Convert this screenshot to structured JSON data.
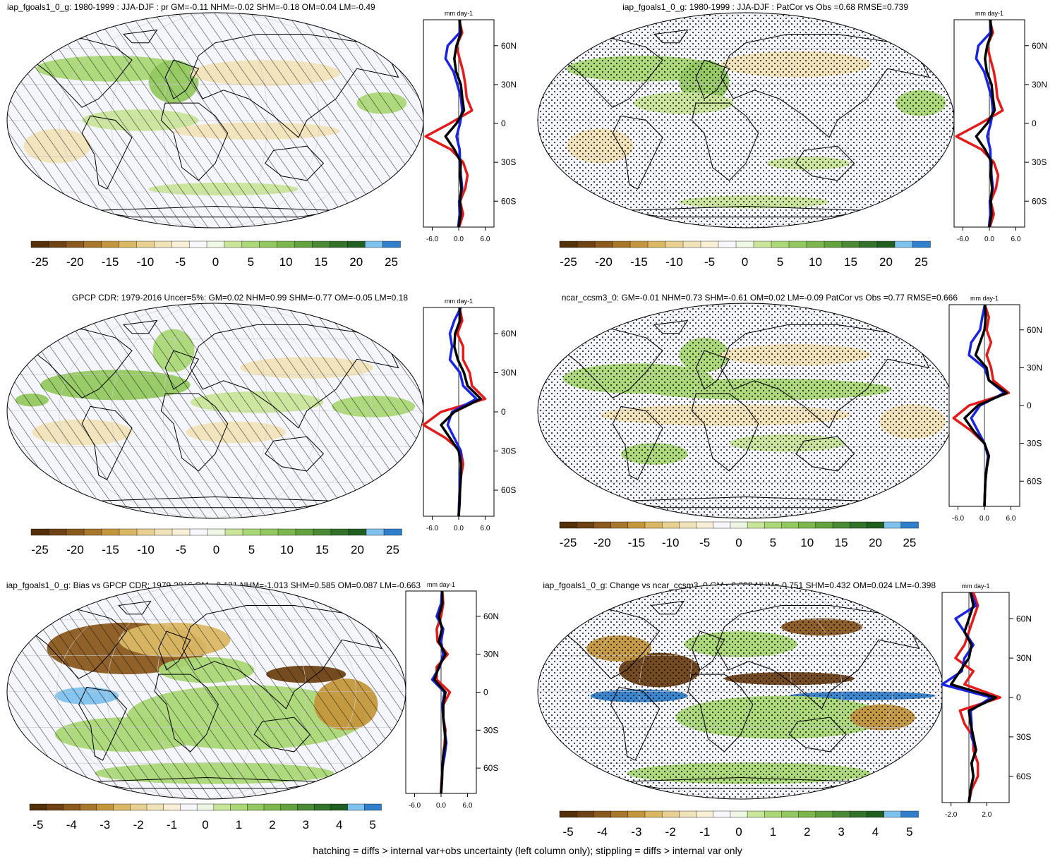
{
  "footer": "hatching = diffs > internal var+obs uncertainty (left column only); stippling = diffs > internal var only",
  "colors": {
    "brown_green_scale": [
      "#54300a",
      "#6e4214",
      "#8a5a1f",
      "#a7772c",
      "#c4973c",
      "#dab864",
      "#e7d092",
      "#f1e3b9",
      "#f8efd6",
      "#f7f7fb",
      "#eef6e4",
      "#c9e59a",
      "#aad876",
      "#93c860",
      "#7cb64c",
      "#63a23f",
      "#4b8a34",
      "#33722a",
      "#205f20",
      "#80c2ee",
      "#2f7fcc"
    ],
    "zonal_model": "#000000",
    "zonal_obs": "#1a24e6",
    "zonal_other": "#e61a1a"
  },
  "chart_data": [
    {
      "type": "heatmap",
      "title": "iap_fgoals1_0_g: 1980-1999 : JJA-DJF : pr GM=-0.11 NHM=-0.02 SHM=-0.18 OM=0.04 LM=-0.49",
      "overlay": "hatching",
      "colorbar_ticks": [
        "-25",
        "-20",
        "-15",
        "-10",
        "-5",
        "0",
        "5",
        "10",
        "15",
        "20",
        "25"
      ],
      "zonal_profile": {
        "units": "mm day-1",
        "xticks": [
          "-6.0",
          "0.0",
          "6.0"
        ],
        "yticks": [
          "60N",
          "30N",
          "0",
          "30S",
          "60S"
        ],
        "xlim": [
          -8,
          8
        ],
        "series_values": {
          "lat": [
            80,
            70,
            60,
            50,
            40,
            30,
            20,
            10,
            0,
            -10,
            -20,
            -30,
            -40,
            -50,
            -60,
            -70,
            -80
          ],
          "black": [
            0.2,
            0.5,
            -0.5,
            -1.0,
            -0.6,
            0.5,
            0.8,
            1.2,
            -0.5,
            -3.0,
            -1.0,
            0.5,
            0.3,
            0.6,
            0.3,
            0.5,
            0.0
          ],
          "blue": [
            0.3,
            0.2,
            -2.5,
            -3.0,
            -1.2,
            -0.3,
            0.5,
            0.8,
            0.3,
            -0.5,
            0.2,
            0.3,
            0.5,
            0.8,
            0.1,
            0.2,
            -0.1
          ],
          "red": [
            0.1,
            0.8,
            -0.5,
            0.2,
            1.0,
            1.5,
            1.8,
            3.0,
            -2.0,
            -7.5,
            -1.8,
            1.0,
            2.0,
            1.5,
            0.3,
            1.0,
            0.1
          ]
        }
      }
    },
    {
      "type": "heatmap",
      "title": "iap_fgoals1_0_g: 1980-1999 : JJA-DJF : PatCor vs Obs =0.68 RMSE=0.739",
      "overlay": "stippling",
      "colorbar_ticks": [
        "-25",
        "-20",
        "-15",
        "-10",
        "-5",
        "0",
        "5",
        "10",
        "15",
        "20",
        "25"
      ],
      "zonal_profile": {
        "units": "mm day-1",
        "xticks": [
          "-6.0",
          "0.0",
          "6.0"
        ],
        "yticks": [
          "60N",
          "30N",
          "0",
          "30S",
          "60S"
        ],
        "xlim": [
          -8,
          8
        ],
        "series_values": {
          "lat": [
            80,
            70,
            60,
            50,
            40,
            30,
            20,
            10,
            0,
            -10,
            -20,
            -30,
            -40,
            -50,
            -60,
            -70,
            -80
          ],
          "black": [
            0.2,
            0.5,
            -0.5,
            -1.0,
            -0.6,
            0.5,
            0.8,
            1.2,
            -0.5,
            -3.0,
            -1.0,
            0.5,
            0.3,
            0.6,
            0.3,
            0.5,
            0.0
          ],
          "blue": [
            0.3,
            0.2,
            -2.5,
            -3.0,
            -1.2,
            -0.3,
            0.5,
            0.8,
            0.3,
            -0.5,
            0.2,
            0.3,
            0.5,
            0.8,
            0.1,
            0.2,
            -0.1
          ],
          "red": [
            0.1,
            0.8,
            -0.5,
            0.2,
            1.0,
            1.5,
            1.8,
            3.0,
            -2.0,
            -7.5,
            -1.8,
            1.0,
            2.0,
            1.5,
            0.3,
            1.0,
            0.1
          ]
        }
      }
    },
    {
      "type": "heatmap",
      "title": "GPCP CDR: 1979-2016 Uncer=5%: GM=0.02 NHM=0.99 SHM=-0.77 OM=-0.05 LM=0.18",
      "overlay": "hatching",
      "colorbar_ticks": [
        "-25",
        "-20",
        "-15",
        "-10",
        "-5",
        "0",
        "5",
        "10",
        "15",
        "20",
        "25"
      ],
      "zonal_profile": {
        "units": "mm day-1",
        "xticks": [
          "-6.0",
          "0.0",
          "6.0"
        ],
        "yticks": [
          "60N",
          "30N",
          "0",
          "30S",
          "60S"
        ],
        "xlim": [
          -8,
          8
        ],
        "series_values": {
          "lat": [
            80,
            70,
            60,
            50,
            40,
            30,
            20,
            10,
            0,
            -10,
            -20,
            -30,
            -40,
            -50,
            -60,
            -70,
            -80
          ],
          "black": [
            0.2,
            0.3,
            -0.8,
            -1.0,
            -0.2,
            1.2,
            2.0,
            5.0,
            -1.0,
            -4.0,
            -2.0,
            0.0,
            0.5,
            0.5,
            0.3,
            0.2,
            0.0
          ],
          "blue": [
            0.5,
            -1.0,
            -2.0,
            -1.5,
            -2.0,
            0.3,
            1.0,
            4.0,
            -1.5,
            -2.5,
            -1.0,
            0.5,
            0.5,
            0.3,
            0.2,
            0.1,
            0.0
          ],
          "red": [
            0.2,
            0.8,
            -0.3,
            1.0,
            1.0,
            2.5,
            3.0,
            6.0,
            -4.0,
            -8.0,
            -3.0,
            0.5,
            1.0,
            0.5,
            0.2,
            0.1,
            0.0
          ]
        }
      }
    },
    {
      "type": "heatmap",
      "title": "ncar_ccsm3_0: GM=-0.01 NHM=0.73 SHM=-0.61 OM=0.02 LM=-0.09 PatCor vs Obs =0.77 RMSE=0.666",
      "overlay": "stippling",
      "colorbar_ticks": [
        "-25",
        "-20",
        "-15",
        "-10",
        "-5",
        "0",
        "5",
        "10",
        "15",
        "20",
        "25"
      ],
      "zonal_profile": {
        "units": "mm day-1",
        "xticks": [
          "-6.0",
          "0.0",
          "6.0"
        ],
        "yticks": [
          "60N",
          "30N",
          "0",
          "30S",
          "60S"
        ],
        "xlim": [
          -8,
          8
        ],
        "series_values": {
          "lat": [
            80,
            70,
            60,
            50,
            40,
            30,
            20,
            10,
            0,
            -10,
            -20,
            -30,
            -40,
            -50,
            -60,
            -70,
            -80
          ],
          "black": [
            0.1,
            0.3,
            0.0,
            -1.0,
            -2.0,
            0.5,
            1.0,
            5.0,
            -1.5,
            -4.5,
            -2.5,
            0.0,
            1.0,
            0.5,
            0.2,
            0.1,
            0.0
          ],
          "blue": [
            0.1,
            -0.5,
            -1.0,
            -3.0,
            -3.5,
            0.0,
            1.0,
            4.5,
            -1.0,
            -3.0,
            -1.5,
            0.0,
            0.8,
            0.5,
            0.2,
            0.1,
            0.0
          ],
          "red": [
            0.1,
            1.0,
            0.5,
            1.5,
            0.5,
            1.5,
            2.0,
            5.5,
            -3.5,
            -7.0,
            -3.0,
            0.0,
            1.0,
            0.5,
            0.2,
            0.1,
            0.0
          ]
        }
      }
    },
    {
      "type": "heatmap",
      "title": "iap_fgoals1_0_g: Bias vs GPCP CDR: 1979-2016 GM=-0.131 NHM=-1.013 SHM=0.585 OM=0.087 LM=-0.663",
      "overlay": "hatching",
      "colorbar_ticks": [
        "-5",
        "-4",
        "-3",
        "-2",
        "-1",
        "0",
        "1",
        "2",
        "3",
        "4",
        "5"
      ],
      "zonal_profile": {
        "units": "mm day-1",
        "xticks": [
          "-6.0",
          "0.0",
          "6.0"
        ],
        "yticks": [
          "60N",
          "30N",
          "0",
          "30S",
          "60S"
        ],
        "xlim": [
          -8,
          8
        ],
        "series_values": {
          "lat": [
            80,
            70,
            60,
            50,
            40,
            30,
            20,
            10,
            0,
            -10,
            -20,
            -30,
            -40,
            -50,
            -60,
            -70,
            -80
          ],
          "black": [
            0.2,
            0.3,
            -0.5,
            0.2,
            -0.5,
            1.0,
            -0.5,
            -1.5,
            1.0,
            0.5,
            0.5,
            0.8,
            1.0,
            0.5,
            0.3,
            0.2,
            0.0
          ],
          "blue": [
            0.2,
            0.0,
            -1.0,
            0.5,
            0.0,
            0.5,
            -0.3,
            -2.0,
            0.8,
            0.3,
            0.5,
            0.8,
            1.2,
            0.8,
            0.3,
            0.2,
            0.0
          ],
          "red": [
            0.3,
            0.5,
            0.0,
            -1.0,
            -0.8,
            1.5,
            -1.0,
            -1.0,
            2.0,
            0.5,
            0.5,
            1.0,
            0.8,
            0.5,
            0.3,
            0.1,
            0.0
          ]
        }
      }
    },
    {
      "type": "heatmap",
      "title": "iap_fgoals1_0_g: Change vs ncar_ccsm3_0 GM=-0.098 NHM=-0.751 SHM=0.432 OM=0.024 LM=-0.398",
      "overlay": "stippling",
      "colorbar_ticks": [
        "-5",
        "-4",
        "-3",
        "-2",
        "-1",
        "0",
        "1",
        "2",
        "3",
        "4",
        "5"
      ],
      "zonal_profile": {
        "units": "mm day-1",
        "xticks": [
          "-2.0",
          "2.0"
        ],
        "yticks": [
          "60N",
          "30N",
          "0",
          "30S",
          "60S"
        ],
        "xlim": [
          -3,
          4.5
        ],
        "series_values": {
          "lat": [
            80,
            70,
            60,
            50,
            40,
            30,
            20,
            10,
            0,
            -10,
            -20,
            -30,
            -40,
            -50,
            -60,
            -70,
            -80
          ],
          "black": [
            0.2,
            0.5,
            0.0,
            -0.5,
            0.3,
            0.0,
            -1.0,
            -2.0,
            3.0,
            0.0,
            0.2,
            0.5,
            0.8,
            0.3,
            0.5,
            0.2,
            0.0
          ],
          "blue": [
            0.2,
            0.8,
            -1.5,
            -0.5,
            0.5,
            -0.5,
            -0.8,
            -3.0,
            2.5,
            0.2,
            0.3,
            0.3,
            0.8,
            0.3,
            0.5,
            0.2,
            0.0
          ],
          "red": [
            0.5,
            1.0,
            0.5,
            0.0,
            -0.5,
            -1.5,
            0.5,
            -0.5,
            3.5,
            -1.0,
            -0.5,
            0.5,
            0.5,
            1.0,
            1.0,
            0.3,
            0.0
          ]
        }
      }
    }
  ]
}
